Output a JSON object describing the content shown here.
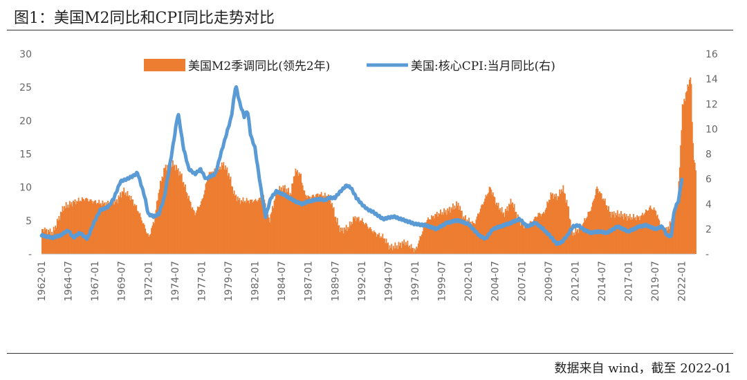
{
  "figure": {
    "title": "图1：美国M2同比和CPI同比走势对比",
    "source": "数据来自 wind，截至 2022-01"
  },
  "colors": {
    "bars": "#ED7D31",
    "line": "#5B9BD5"
  },
  "chart_data": {
    "type": "bar+line",
    "title": "",
    "legend_placement": "top",
    "y_left": {
      "range": [
        0,
        30
      ],
      "ticks": [
        "-",
        "5",
        "10",
        "15",
        "20",
        "25",
        "30"
      ]
    },
    "y_right": {
      "range": [
        0,
        16
      ],
      "ticks": [
        "-",
        "2",
        "4",
        "6",
        "8",
        "10",
        "12",
        "14",
        "16"
      ]
    },
    "x_ticks": [
      "1962-01",
      "1964-07",
      "1967-01",
      "1969-07",
      "1972-01",
      "1974-07",
      "1977-01",
      "1979-07",
      "1982-01",
      "1984-07",
      "1987-01",
      "1989-07",
      "1992-01",
      "1994-07",
      "1997-01",
      "1999-07",
      "2002-01",
      "2004-07",
      "2007-01",
      "2009-07",
      "2012-01",
      "2014-07",
      "2017-01",
      "2019-07",
      "2022-01"
    ],
    "x_range": [
      1962.0,
      2023.25
    ],
    "series": [
      {
        "name": "美国M2季调同比(领先2年)",
        "type": "bar",
        "axis": "left",
        "points": [
          [
            1962.0,
            3.8
          ],
          [
            1963.0,
            3.2
          ],
          [
            1964.0,
            7.0
          ],
          [
            1965.0,
            7.8
          ],
          [
            1966.0,
            8.3
          ],
          [
            1967.0,
            7.8
          ],
          [
            1968.0,
            7.5
          ],
          [
            1969.0,
            8.0
          ],
          [
            1969.6,
            9.5
          ],
          [
            1970.3,
            8.5
          ],
          [
            1971.0,
            6.5
          ],
          [
            1971.5,
            4.5
          ],
          [
            1972.0,
            2.5
          ],
          [
            1972.5,
            5.0
          ],
          [
            1973.0,
            10.0
          ],
          [
            1973.5,
            13.0
          ],
          [
            1974.3,
            13.5
          ],
          [
            1975.0,
            12.0
          ],
          [
            1975.6,
            9.0
          ],
          [
            1976.3,
            6.0
          ],
          [
            1977.0,
            8.0
          ],
          [
            1977.6,
            12.0
          ],
          [
            1978.3,
            12.5
          ],
          [
            1979.0,
            13.5
          ],
          [
            1979.5,
            12.0
          ],
          [
            1980.0,
            9.0
          ],
          [
            1980.5,
            8.0
          ],
          [
            1981.0,
            8.0
          ],
          [
            1982.0,
            8.0
          ],
          [
            1982.8,
            8.5
          ],
          [
            1983.3,
            5.0
          ],
          [
            1984.0,
            9.5
          ],
          [
            1984.7,
            10.0
          ],
          [
            1985.3,
            9.0
          ],
          [
            1985.7,
            12.5
          ],
          [
            1986.2,
            12.0
          ],
          [
            1986.6,
            9.0
          ],
          [
            1987.0,
            8.5
          ],
          [
            1988.0,
            9.0
          ],
          [
            1989.0,
            8.5
          ],
          [
            1989.5,
            5.5
          ],
          [
            1990.0,
            3.5
          ],
          [
            1990.7,
            4.0
          ],
          [
            1991.3,
            5.5
          ],
          [
            1992.0,
            5.0
          ],
          [
            1992.6,
            4.0
          ],
          [
            1993.3,
            3.0
          ],
          [
            1994.0,
            2.5
          ],
          [
            1994.6,
            1.0
          ],
          [
            1995.3,
            1.2
          ],
          [
            1996.0,
            1.8
          ],
          [
            1997.0,
            0.5
          ],
          [
            1998.0,
            5.0
          ],
          [
            1999.0,
            6.0
          ],
          [
            2000.0,
            6.5
          ],
          [
            2001.0,
            7.5
          ],
          [
            2001.5,
            5.5
          ],
          [
            2002.5,
            4.5
          ],
          [
            2003.0,
            6.5
          ],
          [
            2004.0,
            10.0
          ],
          [
            2004.6,
            7.5
          ],
          [
            2005.3,
            6.0
          ],
          [
            2006.0,
            8.0
          ],
          [
            2006.7,
            5.0
          ],
          [
            2007.3,
            4.0
          ],
          [
            2008.0,
            5.0
          ],
          [
            2008.5,
            6.0
          ],
          [
            2009.0,
            6.0
          ],
          [
            2009.7,
            9.0
          ],
          [
            2010.3,
            8.5
          ],
          [
            2010.8,
            10.0
          ],
          [
            2011.3,
            7.0
          ],
          [
            2011.7,
            3.0
          ],
          [
            2012.5,
            4.0
          ],
          [
            2013.5,
            7.0
          ],
          [
            2014.0,
            10.0
          ],
          [
            2014.7,
            8.0
          ],
          [
            2015.3,
            6.0
          ],
          [
            2016.0,
            6.0
          ],
          [
            2017.0,
            5.5
          ],
          [
            2018.0,
            5.5
          ],
          [
            2019.0,
            7.0
          ],
          [
            2019.5,
            6.5
          ],
          [
            2020.0,
            4.0
          ],
          [
            2020.5,
            3.5
          ],
          [
            2021.0,
            5.0
          ],
          [
            2021.6,
            8.0
          ],
          [
            2022.0,
            22.0
          ],
          [
            2022.5,
            25.0
          ],
          [
            2022.8,
            27.0
          ],
          [
            2022.95,
            18.0
          ],
          [
            2023.1,
            14.0
          ],
          [
            2023.25,
            12.5
          ]
        ]
      },
      {
        "name": "美国:核心CPI:当月同比(右)",
        "type": "line",
        "axis": "right",
        "points": [
          [
            1962.0,
            1.5
          ],
          [
            1963.0,
            1.3
          ],
          [
            1963.8,
            1.5
          ],
          [
            1964.5,
            1.9
          ],
          [
            1965.0,
            1.3
          ],
          [
            1965.6,
            1.7
          ],
          [
            1966.3,
            1.2
          ],
          [
            1966.9,
            2.5
          ],
          [
            1967.5,
            3.5
          ],
          [
            1968.3,
            3.8
          ],
          [
            1968.8,
            4.5
          ],
          [
            1969.4,
            5.8
          ],
          [
            1970.0,
            6.0
          ],
          [
            1970.5,
            6.2
          ],
          [
            1971.0,
            6.5
          ],
          [
            1971.7,
            4.5
          ],
          [
            1972.0,
            3.2
          ],
          [
            1972.5,
            3.0
          ],
          [
            1973.0,
            3.2
          ],
          [
            1973.5,
            4.5
          ],
          [
            1974.2,
            8.0
          ],
          [
            1974.8,
            11.3
          ],
          [
            1975.3,
            8.5
          ],
          [
            1975.8,
            6.8
          ],
          [
            1976.4,
            6.4
          ],
          [
            1976.9,
            6.8
          ],
          [
            1977.4,
            6.0
          ],
          [
            1977.8,
            6.2
          ],
          [
            1978.3,
            6.4
          ],
          [
            1978.8,
            8.0
          ],
          [
            1979.3,
            9.5
          ],
          [
            1979.8,
            11.0
          ],
          [
            1980.2,
            13.5
          ],
          [
            1980.6,
            12.0
          ],
          [
            1981.0,
            11.0
          ],
          [
            1981.3,
            11.5
          ],
          [
            1981.6,
            9.5
          ],
          [
            1982.0,
            8.5
          ],
          [
            1982.6,
            5.0
          ],
          [
            1983.0,
            3.0
          ],
          [
            1983.5,
            4.5
          ],
          [
            1984.0,
            5.0
          ],
          [
            1984.6,
            4.8
          ],
          [
            1985.2,
            4.5
          ],
          [
            1985.8,
            4.2
          ],
          [
            1986.4,
            4.0
          ],
          [
            1987.0,
            4.2
          ],
          [
            1987.5,
            4.3
          ],
          [
            1988.0,
            4.4
          ],
          [
            1988.5,
            4.3
          ],
          [
            1989.0,
            4.5
          ],
          [
            1989.5,
            4.5
          ],
          [
            1990.0,
            5.0
          ],
          [
            1990.6,
            5.5
          ],
          [
            1991.0,
            5.3
          ],
          [
            1991.5,
            4.5
          ],
          [
            1992.0,
            4.0
          ],
          [
            1992.5,
            3.6
          ],
          [
            1993.0,
            3.4
          ],
          [
            1994.0,
            2.8
          ],
          [
            1995.0,
            3.0
          ],
          [
            1996.0,
            2.7
          ],
          [
            1997.0,
            2.4
          ],
          [
            1998.0,
            2.3
          ],
          [
            1999.0,
            2.0
          ],
          [
            2000.0,
            2.5
          ],
          [
            2001.0,
            2.7
          ],
          [
            2002.0,
            2.4
          ],
          [
            2003.0,
            1.5
          ],
          [
            2003.6,
            1.2
          ],
          [
            2004.3,
            2.0
          ],
          [
            2005.0,
            2.2
          ],
          [
            2006.0,
            2.5
          ],
          [
            2006.8,
            2.8
          ],
          [
            2007.5,
            2.2
          ],
          [
            2008.3,
            2.5
          ],
          [
            2009.0,
            2.0
          ],
          [
            2009.6,
            1.5
          ],
          [
            2010.3,
            0.8
          ],
          [
            2010.8,
            1.0
          ],
          [
            2011.3,
            1.5
          ],
          [
            2011.8,
            2.2
          ],
          [
            2012.3,
            2.3
          ],
          [
            2012.9,
            1.9
          ],
          [
            2013.5,
            1.7
          ],
          [
            2014.2,
            1.8
          ],
          [
            2015.0,
            1.7
          ],
          [
            2016.0,
            2.2
          ],
          [
            2017.0,
            1.8
          ],
          [
            2018.0,
            2.2
          ],
          [
            2018.7,
            2.3
          ],
          [
            2019.5,
            2.0
          ],
          [
            2020.2,
            2.2
          ],
          [
            2020.6,
            1.5
          ],
          [
            2021.0,
            1.4
          ],
          [
            2021.3,
            3.5
          ],
          [
            2021.7,
            4.3
          ],
          [
            2022.0,
            6.0
          ]
        ]
      }
    ]
  }
}
